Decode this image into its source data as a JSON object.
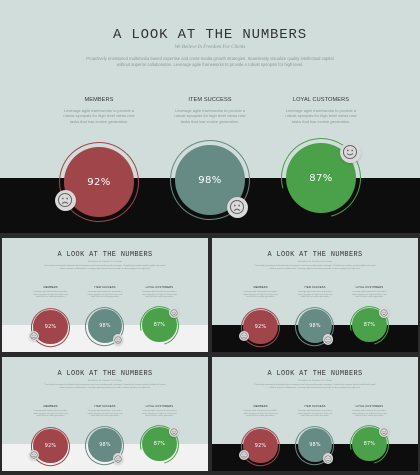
{
  "colors": {
    "background": "#d1ddda",
    "dark_band": "#0d0d0d",
    "light_band": "#f2f2f2",
    "members": "#a0454a",
    "items": "#668a84",
    "customers": "#4aa14a",
    "badge": "#d9d9d9"
  },
  "slide": {
    "title": "A LOOK AT THE NUMBERS",
    "subtitle": "We Believe In Freedom For Clients",
    "intro": "Proactively envisioned multimedia based expertise and cross-media growth strategies. Seamlessly visualize quality intellectual capital without superior collaboration. Leverage agile frameworks to provide a robust synopsis for high level.",
    "columns": [
      {
        "title": "MEMBERS",
        "desc": "Leverage agile frameworks to provide a robust synopsis for high level views new tasks that has evolve generation.",
        "value_label": "92%",
        "value": 92,
        "color_key": "members",
        "icon": "sad-face-icon"
      },
      {
        "title": "ITEM SUCCESS",
        "desc": "Leverage agile frameworks to provide a robust synopsis for high level views new tasks that has evolve generation.",
        "value_label": "98%",
        "value": 98,
        "color_key": "items",
        "icon": "sad-face-icon"
      },
      {
        "title": "LOYAL CUSTOMERS",
        "desc": "Leverage agile frameworks to provide a robust synopsis for high level views new tasks that has evolve generation.",
        "value_label": "87%",
        "value": 87,
        "color_key": "customers",
        "icon": "happy-face-icon"
      }
    ]
  },
  "thumbnails": [
    {
      "band": "light"
    },
    {
      "band": "dark"
    },
    {
      "band": "light"
    },
    {
      "band": "dark"
    }
  ]
}
